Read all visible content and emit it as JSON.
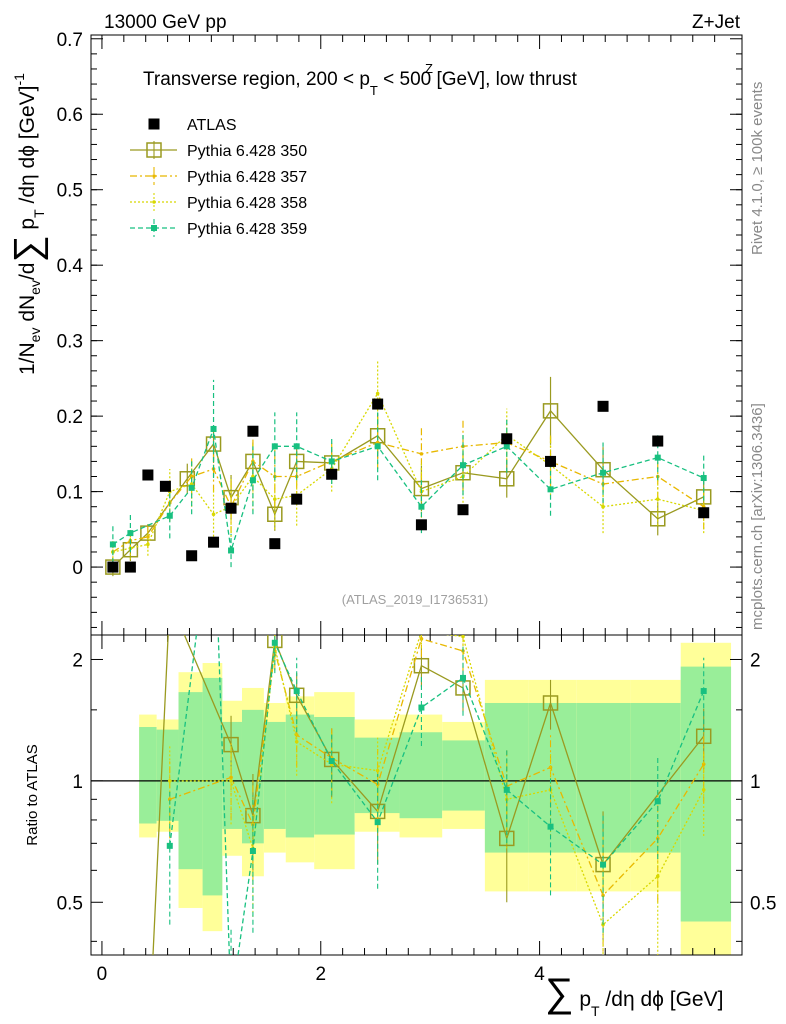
{
  "header": {
    "energy": "13000 GeV pp",
    "process": "Z+Jet"
  },
  "side": {
    "rivet": "Rivet 4.1.0, ≥ 100k events",
    "mcplots": "mcplots.cern.ch [arXiv:1306.3436]"
  },
  "chart_data": {
    "type": "scatter",
    "title_pre": "Transverse region, 200 < p",
    "title_sup": "Z",
    "title_sub": "T",
    "title_post": " < 500 [GeV], low thrust",
    "ylabel": "1/N_ev dN_ev/d∑ p_T /dη dϕ [GeV]^-1",
    "xlabel": "∑ p_T /dη dϕ [GeV]",
    "ratio_ylabel": "Ratio to ATLAS",
    "reference": "(ATLAS_2019_I1736531)",
    "xlim": [
      -0.1,
      5.85
    ],
    "ylim": [
      -0.09,
      0.705
    ],
    "ratio_ylim": [
      0.37,
      2.3
    ],
    "x_ticks": [
      0,
      2,
      4
    ],
    "y_ticks": [
      0,
      0.1,
      0.2,
      0.3,
      0.4,
      0.5,
      0.6,
      0.7
    ],
    "ratio_ticks": [
      0.5,
      1,
      2
    ],
    "atlas": {
      "name": "ATLAS",
      "x": [
        0.1,
        0.26,
        0.42,
        0.58,
        0.82,
        1.02,
        1.18,
        1.38,
        1.58,
        1.78,
        2.1,
        2.52,
        2.92,
        3.3,
        3.7,
        4.1,
        4.58,
        5.08,
        5.5
      ],
      "y": [
        0.0,
        0.0,
        0.122,
        0.107,
        0.015,
        0.033,
        0.078,
        0.18,
        0.031,
        0.09,
        0.123,
        0.216,
        0.056,
        0.076,
        0.17,
        0.14,
        0.213,
        0.167,
        0.072
      ],
      "band_in": [
        0.0,
        0.0,
        0.36,
        0.34,
        0.66,
        0.8,
        0.4,
        0.5,
        0.4,
        0.46,
        0.44,
        0.28,
        0.32,
        0.26,
        0.56,
        0.56,
        0.56,
        0.56,
        0.92
      ],
      "band_out": [
        0.0,
        0.0,
        0.46,
        0.42,
        0.86,
        0.96,
        0.58,
        0.7,
        0.56,
        0.62,
        0.66,
        0.42,
        0.46,
        0.4,
        0.78,
        0.78,
        0.78,
        0.78,
        1.2
      ]
    },
    "series": [
      {
        "name": "Pythia 6.428 350",
        "color": "#9a9a20",
        "dash": "",
        "marker": "open-square",
        "x": [
          0.1,
          0.26,
          0.42,
          0.78,
          1.02,
          1.18,
          1.38,
          1.58,
          1.78,
          2.1,
          2.52,
          2.92,
          3.3,
          3.7,
          4.1,
          4.58,
          5.08,
          5.5
        ],
        "y": [
          0.0,
          0.023,
          0.045,
          0.117,
          0.163,
          0.092,
          0.14,
          0.07,
          0.14,
          0.138,
          0.174,
          0.104,
          0.125,
          0.117,
          0.207,
          0.129,
          0.064,
          0.093
        ],
        "yerr": [
          0.012,
          0.015,
          0.012,
          0.02,
          0.025,
          0.03,
          0.025,
          0.022,
          0.02,
          0.018,
          0.03,
          0.03,
          0.025,
          0.025,
          0.045,
          0.03,
          0.022,
          0.025
        ],
        "ratio_x": [
          0.42,
          0.62,
          1.18,
          1.38,
          1.58,
          1.78,
          2.1,
          2.52,
          2.92,
          3.3,
          3.7,
          4.1,
          4.58,
          5.5
        ],
        "ratio": [
          0.15,
          2.8,
          1.23,
          0.82,
          2.23,
          1.63,
          1.13,
          0.84,
          1.93,
          1.7,
          0.72,
          1.56,
          0.62,
          1.29
        ]
      },
      {
        "name": "Pythia 6.428 357",
        "color": "#e8b800",
        "dash": "7,3,2,3",
        "marker": "dot",
        "x": [
          0.1,
          0.26,
          0.42,
          0.62,
          0.82,
          1.02,
          1.18,
          1.38,
          1.58,
          1.78,
          2.1,
          2.52,
          2.92,
          3.3,
          3.7,
          4.1,
          4.58,
          5.08,
          5.5
        ],
        "y": [
          0.02,
          0.035,
          0.04,
          0.085,
          0.12,
          0.13,
          0.08,
          0.14,
          0.12,
          0.12,
          0.14,
          0.165,
          0.15,
          0.16,
          0.165,
          0.14,
          0.11,
          0.12,
          0.08
        ],
        "yerr": [
          0.015,
          0.015,
          0.015,
          0.025,
          0.025,
          0.03,
          0.035,
          0.04,
          0.04,
          0.035,
          0.025,
          0.035,
          0.035,
          0.035,
          0.03,
          0.035,
          0.03,
          0.03,
          0.03
        ],
        "ratio_x": [
          0.62,
          1.18,
          1.38,
          1.58,
          1.78,
          2.1,
          2.52,
          2.92,
          3.3,
          3.7,
          4.1,
          4.58,
          5.08,
          5.5
        ],
        "ratio": [
          0.9,
          1.02,
          0.78,
          2.1,
          1.3,
          1.14,
          0.98,
          2.25,
          2.1,
          0.97,
          1.08,
          0.52,
          0.72,
          1.1
        ]
      },
      {
        "name": "Pythia 6.428 358",
        "color": "#d8d800",
        "dash": "2,2",
        "marker": "dot",
        "x": [
          0.1,
          0.26,
          0.42,
          0.62,
          0.82,
          1.02,
          1.18,
          1.38,
          1.58,
          1.78,
          2.1,
          2.52,
          2.92,
          3.3,
          3.7,
          4.1,
          4.58,
          5.08,
          5.5
        ],
        "y": [
          0.02,
          0.025,
          0.03,
          0.1,
          0.11,
          0.07,
          0.08,
          0.12,
          0.09,
          0.095,
          0.13,
          0.23,
          0.1,
          0.12,
          0.175,
          0.135,
          0.08,
          0.09,
          0.075
        ],
        "yerr": [
          0.015,
          0.015,
          0.015,
          0.03,
          0.03,
          0.035,
          0.04,
          0.045,
          0.04,
          0.04,
          0.03,
          0.045,
          0.04,
          0.04,
          0.035,
          0.04,
          0.035,
          0.035,
          0.03
        ],
        "ratio_x": [
          0.62,
          1.18,
          1.38,
          1.58,
          1.78,
          2.1,
          2.52,
          2.92,
          3.3,
          3.7,
          4.1,
          4.58,
          5.08,
          5.5
        ],
        "ratio": [
          1.0,
          1.0,
          0.68,
          2.15,
          1.25,
          1.1,
          1.06,
          2.35,
          2.28,
          0.9,
          0.95,
          0.44,
          0.58,
          0.95
        ]
      },
      {
        "name": "Pythia 6.428 359",
        "color": "#18c080",
        "dash": "5,3",
        "marker": "filled-square",
        "x": [
          0.1,
          0.26,
          0.62,
          0.82,
          1.02,
          1.18,
          1.38,
          1.58,
          1.78,
          2.1,
          2.52,
          2.92,
          3.3,
          3.7,
          4.1,
          4.58,
          5.08,
          5.5
        ],
        "y": [
          0.03,
          0.045,
          0.068,
          0.105,
          0.183,
          0.022,
          0.115,
          0.16,
          0.16,
          0.14,
          0.16,
          0.08,
          0.135,
          0.16,
          0.103,
          0.125,
          0.145,
          0.118
        ],
        "yerr": [
          0.025,
          0.025,
          0.03,
          0.035,
          0.065,
          0.022,
          0.045,
          0.045,
          0.045,
          0.03,
          0.045,
          0.035,
          0.04,
          0.035,
          0.035,
          0.04,
          0.03,
          0.03
        ],
        "ratio_x": [
          0.62,
          1.02,
          1.18,
          1.38,
          1.58,
          1.78,
          2.1,
          2.52,
          2.92,
          3.3,
          3.7,
          4.1,
          4.58,
          5.08,
          5.5
        ],
        "ratio": [
          0.69,
          5.0,
          0.28,
          0.67,
          2.2,
          1.67,
          1.12,
          0.79,
          1.52,
          1.8,
          0.95,
          0.77,
          0.62,
          0.89,
          1.67
        ],
        "ratio_err": [
          0.25,
          0.5,
          0.15,
          0.25,
          0.35,
          0.35,
          0.2,
          0.25,
          0.3,
          0.35,
          0.25,
          0.25,
          0.2,
          0.25,
          0.35
        ]
      }
    ]
  }
}
